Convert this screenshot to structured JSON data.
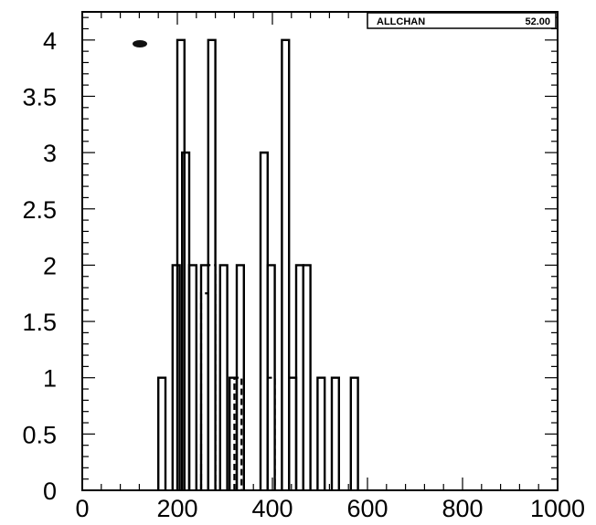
{
  "chart_data": {
    "type": "bar",
    "style": "step-histogram",
    "xlim": [
      0,
      1000
    ],
    "ylim": [
      0,
      4.25
    ],
    "x_ticks": [
      0,
      200,
      400,
      600,
      800,
      1000
    ],
    "y_ticks": [
      0,
      0.5,
      1,
      1.5,
      2,
      2.5,
      3,
      3.5,
      4
    ],
    "x_tick_labels": [
      "0",
      "200",
      "400",
      "600",
      "800",
      "1000"
    ],
    "y_tick_labels": [
      "0",
      "0.5",
      "1",
      "1.5",
      "2",
      "2.5",
      "3",
      "3.5",
      "4"
    ],
    "bin_width": 15,
    "series": [
      {
        "line": "solid",
        "bins": [
          {
            "x0": 160,
            "value": 1
          },
          {
            "x0": 175,
            "value": 0
          },
          {
            "x0": 190,
            "value": 2
          },
          {
            "x0": 200,
            "value": 4
          },
          {
            "x0": 210,
            "value": 3
          },
          {
            "x0": 225,
            "value": 2
          },
          {
            "x0": 240,
            "value": 0
          },
          {
            "x0": 250,
            "value": 2
          },
          {
            "x0": 265,
            "value": 4
          },
          {
            "x0": 280,
            "value": 0
          },
          {
            "x0": 290,
            "value": 2
          },
          {
            "x0": 310,
            "value": 1
          },
          {
            "x0": 325,
            "value": 2
          },
          {
            "x0": 340,
            "value": 0
          },
          {
            "x0": 375,
            "value": 3
          },
          {
            "x0": 390,
            "value": 2
          },
          {
            "x0": 405,
            "value": 0
          },
          {
            "x0": 420,
            "value": 4
          },
          {
            "x0": 435,
            "value": 1
          },
          {
            "x0": 450,
            "value": 2
          },
          {
            "x0": 465,
            "value": 2
          },
          {
            "x0": 480,
            "value": 0
          },
          {
            "x0": 495,
            "value": 1
          },
          {
            "x0": 510,
            "value": 0
          },
          {
            "x0": 525,
            "value": 1
          },
          {
            "x0": 540,
            "value": 0
          },
          {
            "x0": 565,
            "value": 1
          }
        ]
      },
      {
        "line": "dashed",
        "bins": [
          {
            "x0": 250,
            "value": 1.75
          },
          {
            "x0": 265,
            "value": 2
          },
          {
            "x0": 320,
            "value": 1
          },
          {
            "x0": 390,
            "value": 1
          }
        ]
      }
    ],
    "stats_box": {
      "label": "ALLCHAN",
      "value": "52.00",
      "position": "top-right"
    },
    "colors": {
      "line": "#000000",
      "background": "#ffffff"
    }
  }
}
